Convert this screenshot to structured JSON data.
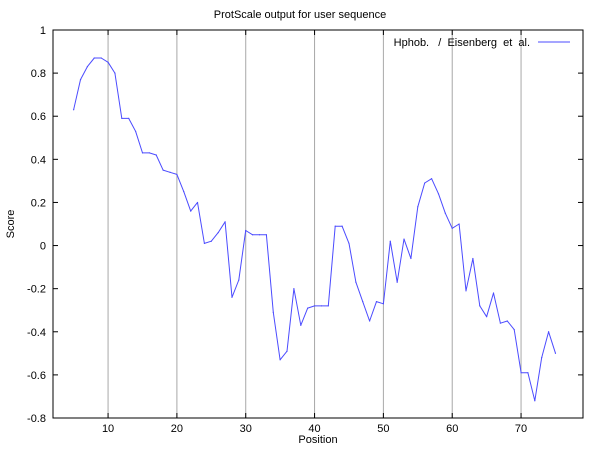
{
  "chart_data": {
    "type": "line",
    "title": "ProtScale output for user sequence",
    "xlabel": "Position",
    "ylabel": "Score",
    "xlim": [
      2,
      79
    ],
    "ylim": [
      -0.8,
      1
    ],
    "xticks": [
      10,
      20,
      30,
      40,
      50,
      60,
      70
    ],
    "yticks": [
      -0.8,
      -0.6,
      -0.4,
      -0.2,
      0,
      0.2,
      0.4,
      0.6,
      0.8,
      1
    ],
    "grid": "vertical",
    "legend_position": "top-right",
    "line_color": "#4b4bff",
    "series": [
      {
        "name": "Hphob.   /  Eisenberg  et  al.",
        "x": [
          5,
          6,
          7,
          8,
          9,
          10,
          11,
          12,
          13,
          14,
          15,
          16,
          17,
          18,
          19,
          20,
          21,
          22,
          23,
          24,
          25,
          26,
          27,
          28,
          29,
          30,
          31,
          32,
          33,
          34,
          35,
          36,
          37,
          38,
          39,
          40,
          41,
          42,
          43,
          44,
          45,
          46,
          47,
          48,
          49,
          50,
          51,
          52,
          53,
          54,
          55,
          56,
          57,
          58,
          59,
          60,
          61,
          62,
          63,
          64,
          65,
          66,
          67,
          68,
          69,
          70,
          71,
          72,
          73,
          74,
          75
        ],
        "values": [
          0.63,
          0.77,
          0.83,
          0.87,
          0.87,
          0.85,
          0.8,
          0.59,
          0.59,
          0.53,
          0.43,
          0.43,
          0.42,
          0.35,
          0.34,
          0.33,
          0.25,
          0.16,
          0.2,
          0.01,
          0.02,
          0.06,
          0.11,
          -0.24,
          -0.16,
          0.07,
          0.05,
          0.05,
          0.05,
          -0.31,
          -0.53,
          -0.49,
          -0.2,
          -0.37,
          -0.29,
          -0.28,
          -0.28,
          -0.28,
          0.09,
          0.09,
          0.01,
          -0.17,
          -0.26,
          -0.35,
          -0.26,
          -0.27,
          0.02,
          -0.17,
          0.03,
          -0.06,
          0.18,
          0.29,
          0.31,
          0.24,
          0.15,
          0.08,
          0.1,
          -0.21,
          -0.06,
          -0.28,
          -0.33,
          -0.22,
          -0.36,
          -0.35,
          -0.39,
          -0.59,
          -0.59,
          -0.72,
          -0.52,
          -0.4,
          -0.5
        ]
      }
    ]
  }
}
